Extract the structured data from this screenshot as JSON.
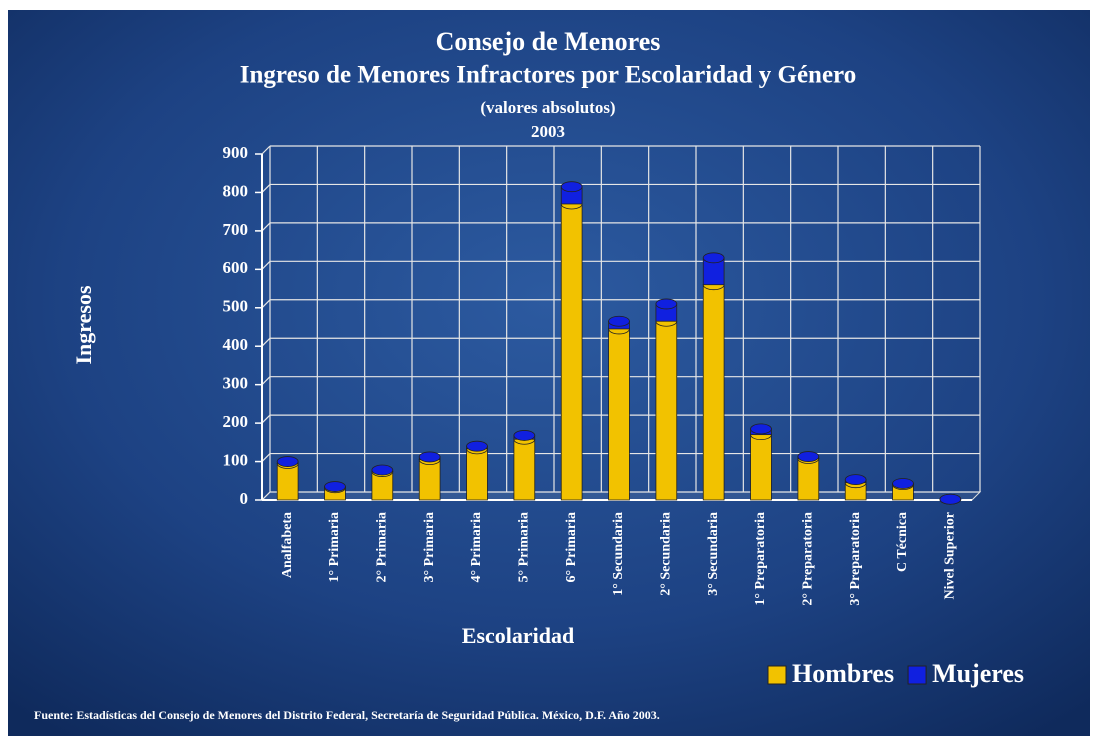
{
  "chart_data": {
    "type": "stacked_bar",
    "title": "Consejo de Menores",
    "subtitle": "Ingreso de Menores Infractores por Escolaridad y Género",
    "note": "(valores absolutos)",
    "year": "2003",
    "y_label": "Ingresos",
    "x_label": "Escolaridad",
    "source": "Fuente: Estadísticas del Consejo de Menores del Distrito Federal, Secretaría de Seguridad Pública. México, D.F. Año 2003.",
    "categories": [
      "Analfabeta",
      "1° Primaria",
      "2° Primaria",
      "3° Primaria",
      "4° Primaria",
      "5° Primaria",
      "6° Primaria",
      "1° Secundaria",
      "2° Secundaria",
      "3° Secundaria",
      "1° Preparatoria",
      "2° Preparatoria",
      "3° Preparatoria",
      "C Técnica",
      "Nivel Superior"
    ],
    "series": [
      {
        "name": "Hombres",
        "color": "#f2c200",
        "values": [
          95,
          32,
          74,
          105,
          133,
          158,
          770,
          445,
          465,
          560,
          170,
          108,
          45,
          40,
          2
        ]
      },
      {
        "name": "Mujeres",
        "color": "#1020e0",
        "values": [
          5,
          3,
          4,
          7,
          7,
          10,
          45,
          20,
          45,
          70,
          15,
          5,
          8,
          3,
          0
        ]
      }
    ],
    "ylim": [
      0,
      900
    ],
    "yticks": [
      0,
      100,
      200,
      300,
      400,
      500,
      600,
      700,
      800,
      900
    ],
    "grid": true,
    "legend": "bottom-right"
  }
}
